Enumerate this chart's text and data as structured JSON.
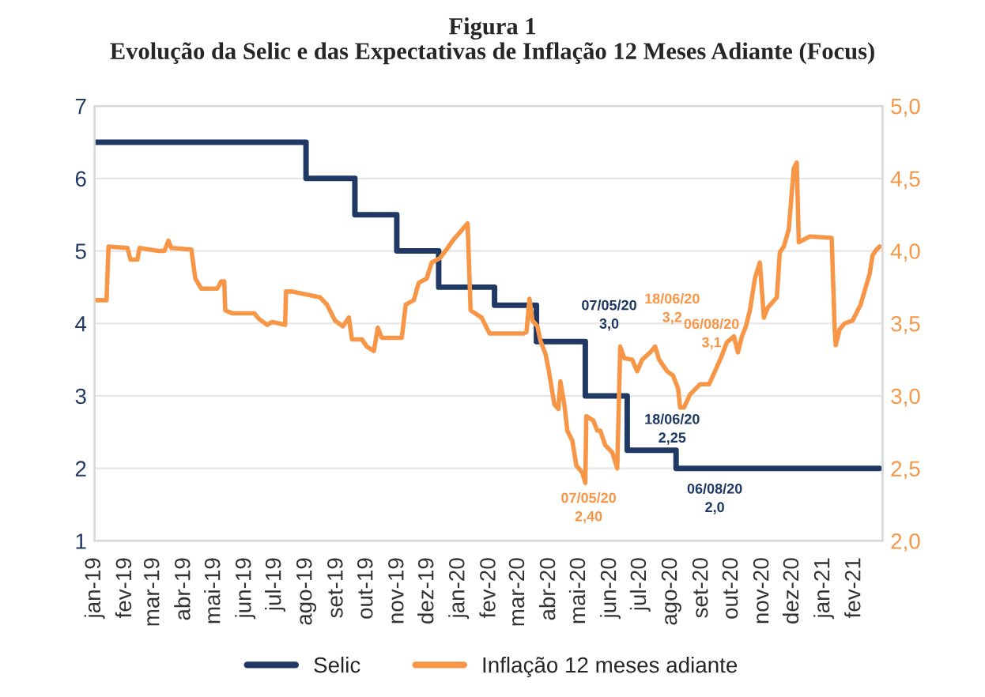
{
  "chart_data": {
    "type": "line",
    "title": "Figura 1\nEvolução da Selic e das Expectativas de Inflação 12 Meses Adiante (Focus)",
    "series": [
      {
        "name": "Selic",
        "type": "step",
        "color": "#1f3864",
        "x": [
          "2019-01-01",
          "2019-08-01",
          "2019-09-19",
          "2019-10-31",
          "2019-12-12",
          "2020-02-06",
          "2020-03-19",
          "2020-05-07",
          "2020-06-18",
          "2020-08-06",
          "2021-02-26"
        ],
        "values": [
          6.5,
          6.0,
          5.5,
          5.0,
          4.5,
          4.25,
          3.75,
          3.0,
          2.25,
          2.0,
          2.0
        ]
      },
      {
        "name": "Inflação 12 meses adiante",
        "type": "line",
        "axis": "y2",
        "color": "#f79646",
        "x": [
          "2019-01-01",
          "2019-01-13",
          "2019-01-15",
          "2019-02-03",
          "2019-02-06",
          "2019-02-13",
          "2019-02-15",
          "2019-03-06",
          "2019-03-12",
          "2019-03-16",
          "2019-03-19",
          "2019-04-08",
          "2019-04-12",
          "2019-04-18",
          "2019-05-04",
          "2019-05-08",
          "2019-05-11",
          "2019-05-12",
          "2019-05-19",
          "2019-06-10",
          "2019-06-15",
          "2019-06-23",
          "2019-06-28",
          "2019-07-11",
          "2019-07-12",
          "2019-07-18",
          "2019-08-15",
          "2019-08-22",
          "2019-08-30",
          "2019-09-07",
          "2019-09-13",
          "2019-09-16",
          "2019-09-26",
          "2019-10-01",
          "2019-10-08",
          "2019-10-12",
          "2019-10-16",
          "2019-11-05",
          "2019-11-09",
          "2019-11-17",
          "2019-11-22",
          "2019-11-30",
          "2019-12-05",
          "2019-12-13",
          "2019-12-21",
          "2019-12-26",
          "2020-01-10",
          "2020-01-13",
          "2020-01-24",
          "2020-02-01",
          "2020-02-15",
          "2020-03-06",
          "2020-03-09",
          "2020-03-12",
          "2020-03-15",
          "2020-03-20",
          "2020-03-23",
          "2020-03-28",
          "2020-03-31",
          "2020-04-06",
          "2020-04-10",
          "2020-04-12",
          "2020-04-16",
          "2020-04-19",
          "2020-04-24",
          "2020-04-28",
          "2020-05-04",
          "2020-05-07",
          "2020-05-08",
          "2020-05-15",
          "2020-05-19",
          "2020-05-22",
          "2020-05-27",
          "2020-06-03",
          "2020-06-08",
          "2020-06-11",
          "2020-06-15",
          "2020-06-23",
          "2020-06-28",
          "2020-07-03",
          "2020-07-11",
          "2020-07-16",
          "2020-07-20",
          "2020-07-28",
          "2020-08-03",
          "2020-08-08",
          "2020-08-10",
          "2020-08-14",
          "2020-08-20",
          "2020-08-30",
          "2020-09-08",
          "2020-09-14",
          "2020-09-21",
          "2020-09-26",
          "2020-10-03",
          "2020-10-07",
          "2020-10-11",
          "2020-10-15",
          "2020-10-19",
          "2020-10-24",
          "2020-10-29",
          "2020-11-02",
          "2020-11-06",
          "2020-11-15",
          "2020-11-18",
          "2020-11-22",
          "2020-11-27",
          "2020-12-02",
          "2020-12-05",
          "2020-12-07",
          "2020-12-18",
          "2021-01-09",
          "2021-01-12",
          "2021-01-13",
          "2021-01-17",
          "2021-01-22",
          "2021-01-30",
          "2021-02-07",
          "2021-02-10",
          "2021-02-16",
          "2021-02-19",
          "2021-02-23",
          "2021-02-26"
        ],
        "values": [
          3.66,
          3.66,
          4.03,
          4.02,
          3.94,
          3.94,
          4.02,
          4.0,
          4.0,
          4.07,
          4.02,
          4.01,
          3.81,
          3.74,
          3.74,
          3.79,
          3.79,
          3.59,
          3.57,
          3.57,
          3.53,
          3.49,
          3.51,
          3.49,
          3.72,
          3.72,
          3.68,
          3.63,
          3.52,
          3.48,
          3.54,
          3.39,
          3.39,
          3.34,
          3.31,
          3.47,
          3.4,
          3.4,
          3.63,
          3.66,
          3.78,
          3.81,
          3.92,
          3.95,
          4.02,
          4.07,
          4.19,
          3.59,
          3.54,
          3.43,
          3.43,
          3.43,
          3.44,
          3.67,
          3.52,
          3.48,
          3.38,
          3.29,
          3.19,
          2.94,
          2.91,
          3.1,
          2.94,
          2.76,
          2.69,
          2.52,
          2.47,
          2.4,
          2.86,
          2.83,
          2.76,
          2.76,
          2.66,
          2.61,
          2.5,
          3.34,
          3.26,
          3.25,
          3.17,
          3.25,
          3.3,
          3.34,
          3.25,
          3.17,
          3.14,
          3.05,
          2.92,
          2.92,
          3.01,
          3.08,
          3.08,
          3.17,
          3.28,
          3.37,
          3.41,
          3.3,
          3.41,
          3.48,
          3.59,
          3.81,
          3.92,
          3.54,
          3.61,
          3.68,
          3.99,
          4.03,
          4.15,
          4.57,
          4.61,
          4.06,
          4.1,
          4.09,
          3.46,
          3.35,
          3.46,
          3.5,
          3.52,
          3.63,
          3.7,
          3.84,
          3.97,
          4.01,
          4.03
        ]
      }
    ],
    "xlim": [
      "2019-01-01",
      "2021-03-01"
    ],
    "xticks": [
      {
        "value": "2019-01-01",
        "label": "jan-19"
      },
      {
        "value": "2019-02-01",
        "label": "fev-19"
      },
      {
        "value": "2019-03-01",
        "label": "mar-19"
      },
      {
        "value": "2019-04-01",
        "label": "abr-19"
      },
      {
        "value": "2019-05-01",
        "label": "mai-19"
      },
      {
        "value": "2019-06-01",
        "label": "jun-19"
      },
      {
        "value": "2019-07-01",
        "label": "jul-19"
      },
      {
        "value": "2019-08-01",
        "label": "ago-19"
      },
      {
        "value": "2019-09-01",
        "label": "set-19"
      },
      {
        "value": "2019-10-01",
        "label": "out-19"
      },
      {
        "value": "2019-11-01",
        "label": "nov-19"
      },
      {
        "value": "2019-12-01",
        "label": "dez-19"
      },
      {
        "value": "2020-01-01",
        "label": "jan-20"
      },
      {
        "value": "2020-02-01",
        "label": "fev-20"
      },
      {
        "value": "2020-03-01",
        "label": "mar-20"
      },
      {
        "value": "2020-04-01",
        "label": "abr-20"
      },
      {
        "value": "2020-05-01",
        "label": "mai-20"
      },
      {
        "value": "2020-06-01",
        "label": "jun-20"
      },
      {
        "value": "2020-07-01",
        "label": "jul-20"
      },
      {
        "value": "2020-08-01",
        "label": "ago-20"
      },
      {
        "value": "2020-09-01",
        "label": "set-20"
      },
      {
        "value": "2020-10-01",
        "label": "out-20"
      },
      {
        "value": "2020-11-01",
        "label": "nov-20"
      },
      {
        "value": "2020-12-01",
        "label": "dez-20"
      },
      {
        "value": "2021-01-01",
        "label": "jan-21"
      },
      {
        "value": "2021-02-01",
        "label": "fev-21"
      }
    ],
    "ylim": [
      1,
      7
    ],
    "yticks": [
      1,
      2,
      3,
      4,
      5,
      6,
      7
    ],
    "y2lim": [
      2.0,
      5.0
    ],
    "y2ticks": [
      {
        "value": 2.0,
        "label": "2,0"
      },
      {
        "value": 2.5,
        "label": "2,5"
      },
      {
        "value": 3.0,
        "label": "3,0"
      },
      {
        "value": 3.5,
        "label": "3,5"
      },
      {
        "value": 4.0,
        "label": "4,0"
      },
      {
        "value": 4.5,
        "label": "4,5"
      },
      {
        "value": 5.0,
        "label": "5,0"
      }
    ],
    "annotations": [
      "07/05/20\n3,0",
      "18/06/20\n2,25",
      "06/08/20\n2,0",
      "07/05/20\n2,40",
      "18/06/20\n3,2",
      "06/08/20\n3,1"
    ],
    "grid": "y",
    "legend": "bottom"
  }
}
